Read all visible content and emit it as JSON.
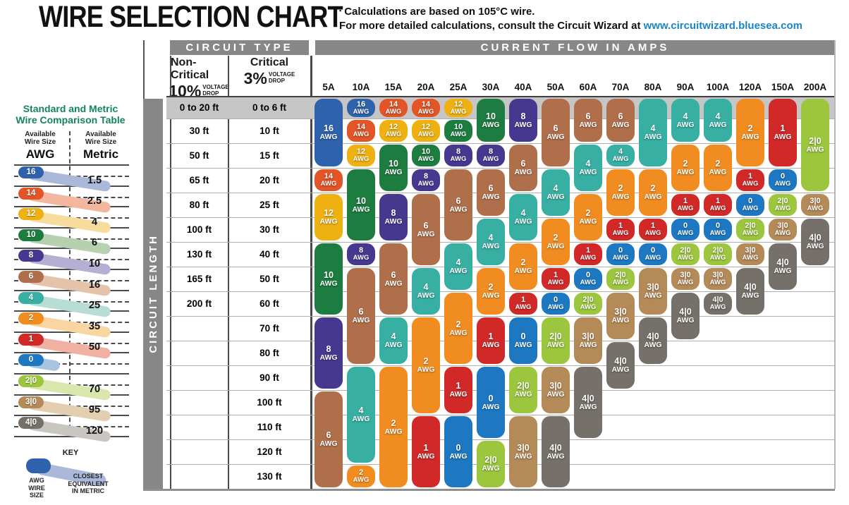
{
  "header": {
    "title": "WIRE SELECTION CHART",
    "bullet": "▪",
    "note_line1": "Calculations are based on 105°C wire.",
    "note_line2": "For more detailed calculations, consult the Circuit Wizard at ",
    "link": "www.circuitwizard.bluesea.com",
    "link_color": "#1a85c4"
  },
  "comparison": {
    "title_line1": "Standard and Metric",
    "title_line2": "Wire Comparison Table",
    "title_color": "#13845c",
    "left_header_line1": "Available",
    "left_header_line2": "Wire Size",
    "left_sub": "AWG",
    "right_header_line1": "Available",
    "right_header_line2": "Wire Size",
    "right_sub": "Metric",
    "rows": [
      {
        "awg": "16",
        "metric": "1.5"
      },
      {
        "awg": "14",
        "metric": "2.5"
      },
      {
        "awg": "12",
        "metric": "4"
      },
      {
        "awg": "10",
        "metric": "6"
      },
      {
        "awg": "8",
        "metric": "10"
      },
      {
        "awg": "6",
        "metric": "16"
      },
      {
        "awg": "4",
        "metric": "25"
      },
      {
        "awg": "2",
        "metric": "35"
      },
      {
        "awg": "1",
        "metric": "50"
      },
      {
        "awg": "0",
        "metric": ""
      },
      {
        "awg": "2|0",
        "metric": "70"
      },
      {
        "awg": "3|0",
        "metric": "95"
      },
      {
        "awg": "4|0",
        "metric": "120"
      }
    ],
    "key": {
      "title": "KEY",
      "pill_awg": "16",
      "label1_lines": [
        "AWG",
        "WIRE",
        "SIZE"
      ],
      "label2_lines": [
        "CLOSEST",
        "EQUIVALENT",
        "IN METRIC"
      ]
    }
  },
  "chart_data": {
    "type": "table",
    "title": "WIRE SELECTION CHART",
    "circuit_type_header": "CIRCUIT TYPE",
    "current_flow_header": "CURRENT FLOW IN AMPS",
    "circuit_length_label": "CIRCUIT LENGTH",
    "noncritical": {
      "label": "Non-Critical",
      "pct": "10%",
      "drop_line1": "VOLTAGE",
      "drop_line2": "DROP"
    },
    "critical": {
      "label": "Critical",
      "pct": "3%",
      "drop_line1": "VOLTAGE",
      "drop_line2": "DROP"
    },
    "amps": [
      "5A",
      "10A",
      "15A",
      "20A",
      "25A",
      "30A",
      "40A",
      "50A",
      "60A",
      "70A",
      "80A",
      "90A",
      "100A",
      "120A",
      "150A",
      "200A"
    ],
    "lengths": [
      {
        "noncritical": "0 to 20 ft",
        "critical": "0 to 6 ft"
      },
      {
        "noncritical": "30 ft",
        "critical": "10 ft"
      },
      {
        "noncritical": "50 ft",
        "critical": "15 ft"
      },
      {
        "noncritical": "65 ft",
        "critical": "20 ft"
      },
      {
        "noncritical": "80 ft",
        "critical": "25 ft"
      },
      {
        "noncritical": "100 ft",
        "critical": "30 ft"
      },
      {
        "noncritical": "130 ft",
        "critical": "40 ft"
      },
      {
        "noncritical": "165 ft",
        "critical": "50 ft"
      },
      {
        "noncritical": "200 ft",
        "critical": "60 ft"
      },
      {
        "noncritical": "",
        "critical": "70 ft"
      },
      {
        "noncritical": "",
        "critical": "80 ft"
      },
      {
        "noncritical": "",
        "critical": "90 ft"
      },
      {
        "noncritical": "",
        "critical": "100 ft"
      },
      {
        "noncritical": "",
        "critical": "110 ft"
      },
      {
        "noncritical": "",
        "critical": "120 ft"
      },
      {
        "noncritical": "",
        "critical": "130 ft"
      }
    ],
    "awg_unit": "AWG",
    "awg_colors": {
      "16": "#2e62ac",
      "14": "#e35426",
      "12": "#efb112",
      "10": "#1d7c40",
      "8": "#46388f",
      "6": "#b06f4b",
      "4": "#38afa3",
      "2": "#f18d20",
      "1": "#d02928",
      "0": "#1d78c1",
      "2|0": "#9cc63d",
      "3|0": "#b48a58",
      "4|0": "#76706a"
    },
    "awg_tints": {
      "16": "#aab9da",
      "14": "#f2b79e",
      "12": "#f7dc9d",
      "10": "#b6d0b0",
      "8": "#b4afd3",
      "6": "#e5c3ab",
      "4": "#b7ddd5",
      "2": "#f9d5a2",
      "1": "#f0b1a2",
      "0": "#a9c4e0",
      "2|0": "#d9e6ae",
      "3|0": "#e3cfb0",
      "4|0": "#c9c5c1"
    },
    "columns": [
      {
        "amp": "5A",
        "pills": [
          {
            "awg": "16",
            "row": 0,
            "span": 3
          },
          {
            "awg": "14",
            "row": 3,
            "span": 1
          },
          {
            "awg": "12",
            "row": 4,
            "span": 2
          },
          {
            "awg": "10",
            "row": 6,
            "span": 3
          },
          {
            "awg": "8",
            "row": 9,
            "span": 3
          },
          {
            "awg": "6",
            "row": 12,
            "span": 4
          }
        ]
      },
      {
        "amp": "10A",
        "pills": [
          {
            "awg": "16",
            "row": 0,
            "span": 1
          },
          {
            "awg": "14",
            "row": 1,
            "span": 1
          },
          {
            "awg": "12",
            "row": 2,
            "span": 1
          },
          {
            "awg": "10",
            "row": 3,
            "span": 3
          },
          {
            "awg": "8",
            "row": 6,
            "span": 1
          },
          {
            "awg": "6",
            "row": 7,
            "span": 4
          },
          {
            "awg": "4",
            "row": 11,
            "span": 4
          },
          {
            "awg": "2",
            "row": 15,
            "span": 1
          }
        ]
      },
      {
        "amp": "15A",
        "pills": [
          {
            "awg": "14",
            "row": 0,
            "span": 1
          },
          {
            "awg": "12",
            "row": 1,
            "span": 1
          },
          {
            "awg": "10",
            "row": 2,
            "span": 2
          },
          {
            "awg": "8",
            "row": 4,
            "span": 2
          },
          {
            "awg": "6",
            "row": 6,
            "span": 3
          },
          {
            "awg": "4",
            "row": 9,
            "span": 2
          },
          {
            "awg": "2",
            "row": 11,
            "span": 5
          }
        ]
      },
      {
        "amp": "20A",
        "pills": [
          {
            "awg": "14",
            "row": 0,
            "span": 1
          },
          {
            "awg": "12",
            "row": 1,
            "span": 1
          },
          {
            "awg": "10",
            "row": 2,
            "span": 1
          },
          {
            "awg": "8",
            "row": 3,
            "span": 1
          },
          {
            "awg": "6",
            "row": 4,
            "span": 3
          },
          {
            "awg": "4",
            "row": 7,
            "span": 2
          },
          {
            "awg": "2",
            "row": 9,
            "span": 4
          },
          {
            "awg": "1",
            "row": 13,
            "span": 3
          }
        ]
      },
      {
        "amp": "25A",
        "pills": [
          {
            "awg": "12",
            "row": 0,
            "span": 1
          },
          {
            "awg": "10",
            "row": 1,
            "span": 1
          },
          {
            "awg": "8",
            "row": 2,
            "span": 1
          },
          {
            "awg": "6",
            "row": 3,
            "span": 3
          },
          {
            "awg": "4",
            "row": 6,
            "span": 2
          },
          {
            "awg": "2",
            "row": 8,
            "span": 3
          },
          {
            "awg": "1",
            "row": 11,
            "span": 2
          },
          {
            "awg": "0",
            "row": 13,
            "span": 3
          }
        ]
      },
      {
        "amp": "30A",
        "pills": [
          {
            "awg": "10",
            "row": 0,
            "span": 2
          },
          {
            "awg": "8",
            "row": 2,
            "span": 1
          },
          {
            "awg": "6",
            "row": 3,
            "span": 2
          },
          {
            "awg": "4",
            "row": 5,
            "span": 2
          },
          {
            "awg": "2",
            "row": 7,
            "span": 2
          },
          {
            "awg": "1",
            "row": 9,
            "span": 2
          },
          {
            "awg": "0",
            "row": 11,
            "span": 3
          },
          {
            "awg": "2|0",
            "row": 14,
            "span": 2
          }
        ]
      },
      {
        "amp": "40A",
        "pills": [
          {
            "awg": "8",
            "row": 0,
            "span": 2
          },
          {
            "awg": "6",
            "row": 2,
            "span": 2
          },
          {
            "awg": "4",
            "row": 4,
            "span": 2
          },
          {
            "awg": "2",
            "row": 6,
            "span": 2
          },
          {
            "awg": "1",
            "row": 8,
            "span": 1
          },
          {
            "awg": "0",
            "row": 9,
            "span": 2
          },
          {
            "awg": "2|0",
            "row": 11,
            "span": 2
          },
          {
            "awg": "3|0",
            "row": 13,
            "span": 3
          }
        ]
      },
      {
        "amp": "50A",
        "pills": [
          {
            "awg": "6",
            "row": 0,
            "span": 3
          },
          {
            "awg": "4",
            "row": 3,
            "span": 2
          },
          {
            "awg": "2",
            "row": 5,
            "span": 2
          },
          {
            "awg": "1",
            "row": 7,
            "span": 1
          },
          {
            "awg": "0",
            "row": 8,
            "span": 1
          },
          {
            "awg": "2|0",
            "row": 9,
            "span": 2
          },
          {
            "awg": "3|0",
            "row": 11,
            "span": 2
          },
          {
            "awg": "4|0",
            "row": 13,
            "span": 3
          }
        ]
      },
      {
        "amp": "60A",
        "pills": [
          {
            "awg": "6",
            "row": 0,
            "span": 2
          },
          {
            "awg": "4",
            "row": 2,
            "span": 2
          },
          {
            "awg": "2",
            "row": 4,
            "span": 2
          },
          {
            "awg": "1",
            "row": 6,
            "span": 1
          },
          {
            "awg": "0",
            "row": 7,
            "span": 1
          },
          {
            "awg": "2|0",
            "row": 8,
            "span": 1
          },
          {
            "awg": "3|0",
            "row": 9,
            "span": 2
          },
          {
            "awg": "4|0",
            "row": 11,
            "span": 3
          }
        ]
      },
      {
        "amp": "70A",
        "pills": [
          {
            "awg": "6",
            "row": 0,
            "span": 2
          },
          {
            "awg": "4",
            "row": 2,
            "span": 1
          },
          {
            "awg": "2",
            "row": 3,
            "span": 2
          },
          {
            "awg": "1",
            "row": 5,
            "span": 1
          },
          {
            "awg": "0",
            "row": 6,
            "span": 1
          },
          {
            "awg": "2|0",
            "row": 7,
            "span": 1
          },
          {
            "awg": "3|0",
            "row": 8,
            "span": 2
          },
          {
            "awg": "4|0",
            "row": 10,
            "span": 2
          }
        ]
      },
      {
        "amp": "80A",
        "pills": [
          {
            "awg": "4",
            "row": 0,
            "span": 3
          },
          {
            "awg": "2",
            "row": 3,
            "span": 2
          },
          {
            "awg": "1",
            "row": 5,
            "span": 1
          },
          {
            "awg": "0",
            "row": 6,
            "span": 1
          },
          {
            "awg": "3|0",
            "row": 7,
            "span": 2
          },
          {
            "awg": "4|0",
            "row": 9,
            "span": 2
          }
        ]
      },
      {
        "amp": "90A",
        "pills": [
          {
            "awg": "4",
            "row": 0,
            "span": 2
          },
          {
            "awg": "2",
            "row": 2,
            "span": 2
          },
          {
            "awg": "1",
            "row": 4,
            "span": 1
          },
          {
            "awg": "0",
            "row": 5,
            "span": 1
          },
          {
            "awg": "2|0",
            "row": 6,
            "span": 1
          },
          {
            "awg": "3|0",
            "row": 7,
            "span": 1
          },
          {
            "awg": "4|0",
            "row": 8,
            "span": 2
          }
        ]
      },
      {
        "amp": "100A",
        "pills": [
          {
            "awg": "4",
            "row": 0,
            "span": 2
          },
          {
            "awg": "2",
            "row": 2,
            "span": 2
          },
          {
            "awg": "1",
            "row": 4,
            "span": 1
          },
          {
            "awg": "0",
            "row": 5,
            "span": 1
          },
          {
            "awg": "2|0",
            "row": 6,
            "span": 1
          },
          {
            "awg": "3|0",
            "row": 7,
            "span": 1
          },
          {
            "awg": "4|0",
            "row": 8,
            "span": 1
          }
        ]
      },
      {
        "amp": "120A",
        "pills": [
          {
            "awg": "2",
            "row": 0,
            "span": 3
          },
          {
            "awg": "1",
            "row": 3,
            "span": 1
          },
          {
            "awg": "0",
            "row": 4,
            "span": 1
          },
          {
            "awg": "2|0",
            "row": 5,
            "span": 1
          },
          {
            "awg": "3|0",
            "row": 6,
            "span": 1
          },
          {
            "awg": "4|0",
            "row": 7,
            "span": 2
          }
        ]
      },
      {
        "amp": "150A",
        "pills": [
          {
            "awg": "1",
            "row": 0,
            "span": 3
          },
          {
            "awg": "0",
            "row": 3,
            "span": 1
          },
          {
            "awg": "2|0",
            "row": 4,
            "span": 1
          },
          {
            "awg": "3|0",
            "row": 5,
            "span": 1
          },
          {
            "awg": "4|0",
            "row": 6,
            "span": 2
          }
        ]
      },
      {
        "amp": "200A",
        "pills": [
          {
            "awg": "2|0",
            "row": 0,
            "span": 4
          },
          {
            "awg": "3|0",
            "row": 4,
            "span": 1
          },
          {
            "awg": "4|0",
            "row": 5,
            "span": 2
          }
        ]
      }
    ]
  }
}
